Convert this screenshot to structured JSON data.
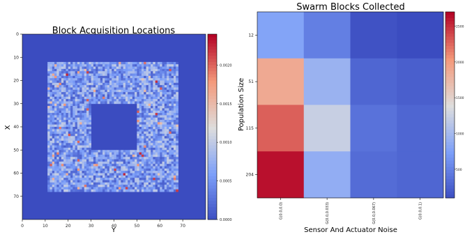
{
  "chart_data": [
    {
      "type": "heatmap",
      "title": "Block Acquisition Locations",
      "xlabel": "Y",
      "ylabel": "X",
      "grid_size": [
        80,
        80
      ],
      "xlim": [
        0,
        80
      ],
      "ylim": [
        80,
        0
      ],
      "x_ticks": [
        "0",
        "10",
        "20",
        "30",
        "40",
        "50",
        "60",
        "70"
      ],
      "y_ticks": [
        "0",
        "10",
        "20",
        "30",
        "40",
        "50",
        "60",
        "70"
      ],
      "grid": false,
      "colormap": "coolwarm",
      "background_value": 0.0,
      "outer_region": {
        "rows": [
          12,
          68
        ],
        "cols": [
          11,
          68
        ]
      },
      "inner_hole": {
        "rows": [
          30,
          50
        ],
        "cols": [
          30,
          50
        ]
      },
      "cell_value_range": [
        0.0,
        0.0023
      ],
      "typical_cell_value": 0.0007,
      "colorbar": {
        "min": 0.0,
        "max": 0.0024,
        "ticks": [
          "0.0000",
          "0.0005",
          "0.0010",
          "0.0015",
          "0.0020"
        ]
      }
    },
    {
      "type": "heatmap",
      "title": "Swarm Blocks Collected",
      "xlabel": "Sensor And Actuator Noise",
      "ylabel": "Population Size",
      "categories": [
        "G(0.0,0.0)",
        "G(0.0,0.033)",
        "G(0.0,0.067)",
        "G(0.0,0.1)"
      ],
      "rows": [
        "12",
        "51",
        "115",
        "204"
      ],
      "values": [
        [
          800,
          500,
          150,
          100
        ],
        [
          1900,
          950,
          300,
          250
        ],
        [
          2300,
          1250,
          400,
          300
        ],
        [
          2650,
          900,
          350,
          300
        ]
      ],
      "grid": false,
      "colormap": "coolwarm",
      "colorbar": {
        "min": 100,
        "max": 2700,
        "ticks": [
          "500",
          "1000",
          "1500",
          "2000",
          "2500"
        ]
      }
    }
  ]
}
